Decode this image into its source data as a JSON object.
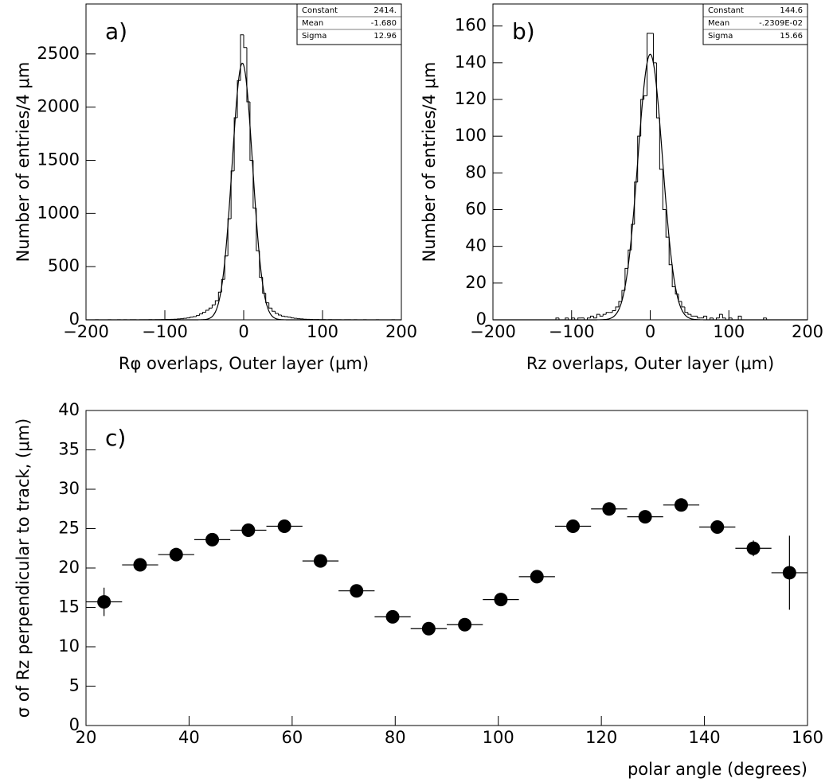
{
  "chart_data": [
    {
      "type": "histogram",
      "annotation": "a)",
      "x_label": "Rφ overlaps, Outer layer (μm)",
      "y_label": "Number of entries/4 μm",
      "bins": [
        -200,
        -196,
        -192,
        -188,
        -184,
        -180,
        -176,
        -172,
        -168,
        -164,
        -160,
        -156,
        -152,
        -148,
        -144,
        -140,
        -136,
        -132,
        -128,
        -124,
        -120,
        -116,
        -112,
        -108,
        -104,
        -100,
        -96,
        -92,
        -88,
        -84,
        -80,
        -76,
        -72,
        -68,
        -64,
        -60,
        -56,
        -52,
        -48,
        -44,
        -40,
        -36,
        -32,
        -28,
        -24,
        -20,
        -16,
        -12,
        -8,
        -4,
        0,
        4,
        8,
        12,
        16,
        20,
        24,
        28,
        32,
        36,
        40,
        44,
        48,
        52,
        56,
        60,
        64,
        68,
        72,
        76,
        80,
        84,
        88,
        92,
        96,
        100,
        104,
        108,
        112,
        116,
        120,
        124,
        128,
        132,
        136,
        140,
        144,
        148,
        152,
        156,
        160,
        164,
        168,
        172,
        176,
        180,
        184,
        188,
        192,
        196,
        200
      ],
      "values": [
        0,
        0,
        0,
        1,
        0,
        0,
        0,
        1,
        0,
        0,
        1,
        0,
        1,
        0,
        1,
        1,
        0,
        1,
        1,
        1,
        2,
        1,
        2,
        2,
        3,
        4,
        4,
        5,
        6,
        8,
        10,
        14,
        18,
        25,
        30,
        40,
        55,
        70,
        90,
        110,
        140,
        180,
        260,
        380,
        600,
        950,
        1400,
        1900,
        2250,
        2680,
        2560,
        2050,
        1500,
        1050,
        650,
        400,
        250,
        160,
        110,
        80,
        60,
        45,
        35,
        30,
        25,
        18,
        14,
        10,
        8,
        6,
        5,
        4,
        3,
        3,
        2,
        2,
        1,
        2,
        1,
        1,
        1,
        0,
        1,
        1,
        0,
        1,
        0,
        0,
        1,
        0,
        0,
        0,
        1,
        0,
        0,
        0,
        0,
        1,
        0,
        0
      ],
      "color": "#000000",
      "stats": [
        {
          "name": "Constant",
          "value": 2414,
          "label": "2414."
        },
        {
          "name": "Mean",
          "value": -1.68,
          "label": "-1.680"
        },
        {
          "name": "Sigma",
          "value": 12.96,
          "label": "12.96"
        }
      ],
      "xlim": [
        -200,
        200
      ],
      "xticks": [
        {
          "value": -200,
          "label": "−200"
        },
        {
          "value": -100,
          "label": "−100"
        },
        0,
        100,
        200
      ],
      "ylim": [
        0,
        2970
      ],
      "yticks": [
        0,
        500,
        1000,
        1500,
        2000,
        2500
      ]
    },
    {
      "type": "histogram",
      "annotation": "b)",
      "x_label": "Rz overlaps, Outer layer (μm)",
      "y_label": "Number of entries/4 μm",
      "bins": [
        -200,
        -196,
        -192,
        -188,
        -184,
        -180,
        -176,
        -172,
        -168,
        -164,
        -160,
        -156,
        -152,
        -148,
        -144,
        -140,
        -136,
        -132,
        -128,
        -124,
        -120,
        -116,
        -112,
        -108,
        -104,
        -100,
        -96,
        -92,
        -88,
        -84,
        -80,
        -76,
        -72,
        -68,
        -64,
        -60,
        -56,
        -52,
        -48,
        -44,
        -40,
        -36,
        -32,
        -28,
        -24,
        -20,
        -16,
        -12,
        -8,
        -4,
        0,
        4,
        8,
        12,
        16,
        20,
        24,
        28,
        32,
        36,
        40,
        44,
        48,
        52,
        56,
        60,
        64,
        68,
        72,
        76,
        80,
        84,
        88,
        92,
        96,
        100,
        104,
        108,
        112,
        116,
        120,
        124,
        128,
        132,
        136,
        140,
        144,
        148,
        152,
        156,
        160,
        164,
        168,
        172,
        176,
        180,
        184,
        188,
        192,
        196,
        200
      ],
      "values": [
        0,
        0,
        0,
        0,
        0,
        0,
        0,
        0,
        0,
        0,
        0,
        0,
        0,
        0,
        0,
        0,
        0,
        0,
        0,
        0,
        1,
        0,
        0,
        1,
        0,
        1,
        0,
        1,
        1,
        0,
        1,
        2,
        1,
        3,
        2,
        3,
        4,
        4,
        5,
        7,
        10,
        16,
        28,
        38,
        52,
        75,
        100,
        120,
        122,
        156,
        156,
        140,
        110,
        82,
        60,
        45,
        30,
        18,
        14,
        10,
        7,
        4,
        3,
        2,
        2,
        1,
        1,
        2,
        0,
        1,
        0,
        1,
        3,
        1,
        0,
        1,
        0,
        0,
        2,
        0,
        0,
        0,
        0,
        0,
        0,
        0,
        1,
        0,
        0,
        0,
        0,
        0,
        0,
        0,
        0,
        0,
        0,
        0,
        0,
        0
      ],
      "color": "#000000",
      "stats": [
        {
          "name": "Constant",
          "value": 144.6,
          "label": "144.6"
        },
        {
          "name": "Mean",
          "value": -0.002309,
          "label": "-.2309E-02"
        },
        {
          "name": "Sigma",
          "value": 15.66,
          "label": "15.66"
        }
      ],
      "xlim": [
        -200,
        200
      ],
      "xticks": [
        {
          "value": -200,
          "label": "−200"
        },
        {
          "value": -100,
          "label": "−100"
        },
        0,
        100,
        200
      ],
      "ylim": [
        0,
        172
      ],
      "yticks": [
        0,
        20,
        40,
        60,
        80,
        100,
        120,
        140,
        160
      ]
    },
    {
      "type": "scatter",
      "annotation": "c)",
      "x_label": "polar angle (degrees)",
      "y_label": "σ of Rz perpendicular to track, (μm)",
      "x": [
        23.5,
        30.5,
        37.5,
        44.5,
        51.5,
        58.5,
        65.5,
        72.5,
        79.5,
        86.5,
        93.5,
        100.5,
        107.5,
        114.5,
        121.5,
        128.5,
        135.5,
        142.5,
        149.5,
        156.5
      ],
      "values": [
        15.7,
        20.4,
        21.7,
        23.6,
        24.8,
        25.3,
        20.9,
        17.1,
        13.8,
        12.3,
        12.8,
        16.0,
        18.9,
        25.3,
        27.5,
        26.5,
        28.0,
        25.2,
        22.5,
        19.4
      ],
      "xerr": [
        3.5,
        3.5,
        3.5,
        3.5,
        3.5,
        3.5,
        3.5,
        3.5,
        3.5,
        3.5,
        3.5,
        3.5,
        3.5,
        3.5,
        3.5,
        3.5,
        3.5,
        3.5,
        3.5,
        3.5
      ],
      "yerr": [
        1.8,
        0.4,
        0.4,
        0.4,
        0.4,
        0.4,
        0.4,
        0.4,
        0.4,
        0.3,
        0.3,
        0.3,
        0.3,
        0.3,
        0.3,
        0.3,
        0.4,
        0.4,
        1.0,
        4.7
      ],
      "color": "#000000",
      "xlim": [
        20,
        160
      ],
      "xticks": [
        20,
        40,
        60,
        80,
        100,
        120,
        140,
        160
      ],
      "ylim": [
        0,
        40
      ],
      "yticks": [
        0,
        5,
        10,
        15,
        20,
        25,
        30,
        35,
        40
      ]
    }
  ]
}
